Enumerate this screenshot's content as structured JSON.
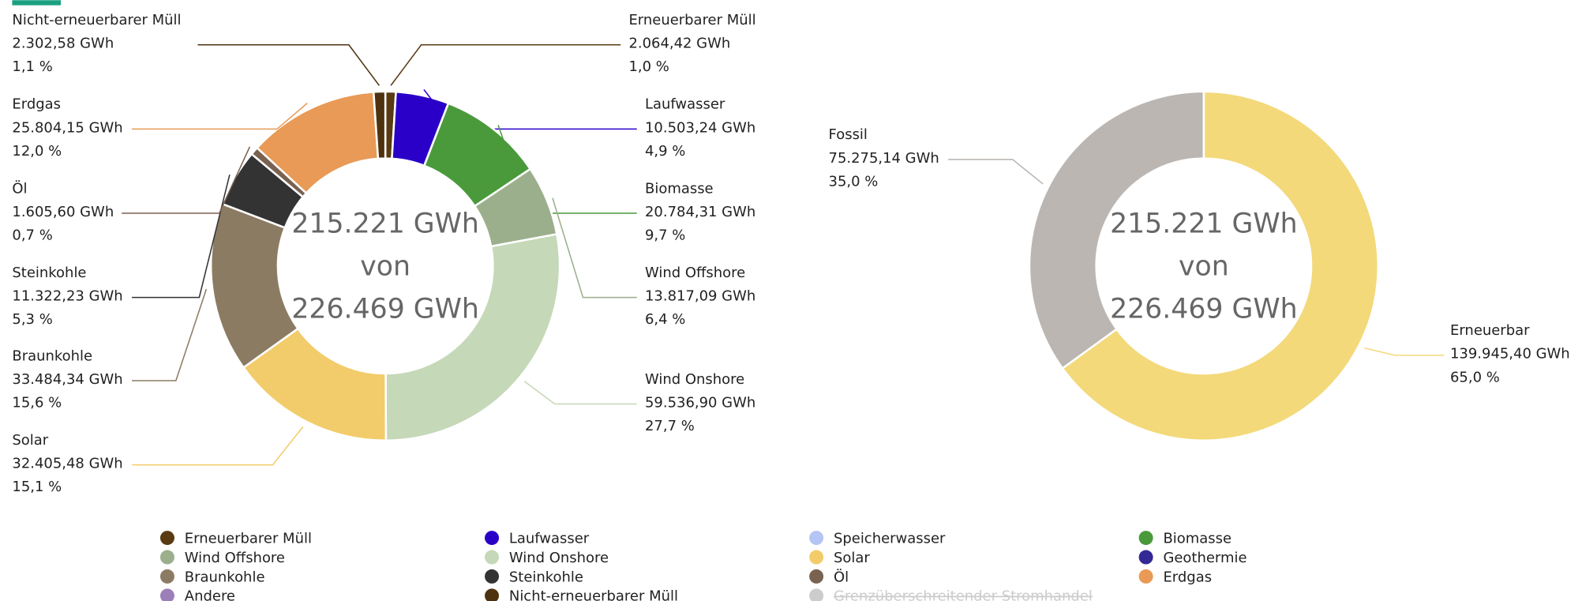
{
  "chart_data": [
    {
      "type": "pie",
      "center_text": [
        "215.221 GWh",
        "von",
        "226.469 GWh"
      ],
      "categories": [
        "Erneuerbarer Müll",
        "Laufwasser",
        "Biomasse",
        "Wind Offshore",
        "Wind Onshore",
        "Solar",
        "Braunkohle",
        "Steinkohle",
        "Öl",
        "Erdgas",
        "Nicht-erneuerbarer Müll"
      ],
      "values": [
        2064.42,
        10503.24,
        20784.31,
        13817.09,
        59536.9,
        32405.48,
        33484.34,
        11322.23,
        1605.6,
        25804.15,
        2302.58
      ],
      "value_labels": [
        "2.064,42 GWh",
        "10.503,24 GWh",
        "20.784,31 GWh",
        "13.817,09 GWh",
        "59.536,90 GWh",
        "32.405,48 GWh",
        "33.484,34 GWh",
        "11.322,23 GWh",
        "1.605,60 GWh",
        "25.804,15 GWh",
        "2.302,58 GWh"
      ],
      "percents": [
        1.0,
        4.9,
        9.7,
        6.4,
        27.7,
        15.1,
        15.6,
        5.3,
        0.7,
        12.0,
        1.1
      ],
      "percent_labels": [
        "1,0 %",
        "4,9 %",
        "9,7 %",
        "6,4 %",
        "27,7 %",
        "15,1 %",
        "15,6 %",
        "5,3 %",
        "0,7 %",
        "12,0 %",
        "1,1 %"
      ],
      "colors": [
        "#5a3a12",
        "#2a00c8",
        "#4a9a3c",
        "#9caf8c",
        "#c5d8b8",
        "#f2cc6a",
        "#8c7b63",
        "#333333",
        "#7a6250",
        "#e89a56",
        "#4e3210"
      ]
    },
    {
      "type": "pie",
      "center_text": [
        "215.221 GWh",
        "von",
        "226.469 GWh"
      ],
      "categories": [
        "Erneuerbar",
        "Fossil"
      ],
      "values": [
        139945.4,
        75275.14
      ],
      "value_labels": [
        "139.945,40 GWh",
        "75.275,14 GWh"
      ],
      "percents": [
        65.0,
        35.0
      ],
      "percent_labels": [
        "65,0 %",
        "35,0 %"
      ],
      "colors": [
        "#f3d97a",
        "#bbb6b2"
      ]
    }
  ],
  "legend": {
    "items": [
      {
        "name": "Erneuerbarer Müll",
        "color": "#5a3a12"
      },
      {
        "name": "Laufwasser",
        "color": "#2a00c8"
      },
      {
        "name": "Speicherwasser",
        "color": "#b4c4f4"
      },
      {
        "name": "Biomasse",
        "color": "#4a9a3c"
      },
      {
        "name": "Wind Offshore",
        "color": "#9caf8c"
      },
      {
        "name": "Wind Onshore",
        "color": "#c5d8b8"
      },
      {
        "name": "Solar",
        "color": "#f2cc6a"
      },
      {
        "name": "Geothermie",
        "color": "#332a95"
      },
      {
        "name": "Braunkohle",
        "color": "#8c7b63"
      },
      {
        "name": "Steinkohle",
        "color": "#333333"
      },
      {
        "name": "Öl",
        "color": "#7a6250"
      },
      {
        "name": "Erdgas",
        "color": "#e89a56"
      },
      {
        "name": "Andere",
        "color": "#9c7fb8"
      },
      {
        "name": "Nicht-erneuerbarer Müll",
        "color": "#4e3210"
      },
      {
        "name": "Grenzüberschreitender Stromhandel",
        "color": "#cccccc",
        "hidden": true
      }
    ]
  }
}
